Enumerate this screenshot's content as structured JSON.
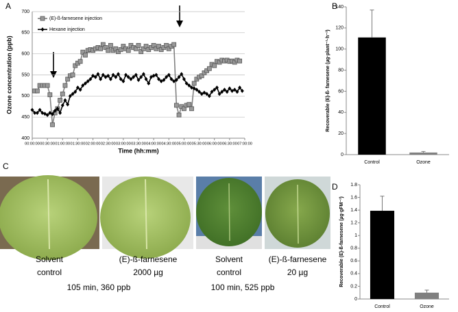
{
  "chart_data": [
    {
      "type": "line",
      "panel": "A",
      "xlabel": "Time (hh:mm)",
      "ylabel": "Ozone concentration (ppb)",
      "x": [
        0,
        5,
        10,
        15,
        20,
        25,
        30,
        35,
        40,
        45,
        50,
        55,
        60,
        65,
        70,
        75,
        80,
        85,
        90,
        95,
        100,
        105,
        110,
        115,
        120,
        125,
        130,
        135,
        140,
        145,
        150,
        155,
        160,
        165,
        170,
        175,
        180,
        185,
        190,
        195,
        200,
        205,
        210,
        215,
        220,
        225,
        230,
        235,
        240,
        245,
        250,
        255,
        260,
        265,
        270,
        275,
        280,
        285,
        290,
        295,
        300,
        305,
        310,
        315,
        320,
        325,
        330,
        335,
        340,
        345,
        350,
        355,
        360,
        365,
        370,
        375,
        380,
        385,
        390,
        395,
        400,
        405,
        410,
        415
      ],
      "series": [
        {
          "name": "(E)-ß-farnesene injection",
          "color": "#808080",
          "marker": "square",
          "values": [
            null,
            512,
            512,
            525,
            525,
            525,
            525,
            503,
            432,
            460,
            470,
            490,
            505,
            525,
            540,
            548,
            550,
            572,
            578,
            582,
            604,
            597,
            608,
            610,
            608,
            612,
            615,
            612,
            622,
            615,
            608,
            620,
            608,
            612,
            605,
            610,
            618,
            612,
            608,
            620,
            615,
            612,
            620,
            605,
            612,
            618,
            610,
            615,
            620,
            612,
            618,
            610,
            615,
            620,
            612,
            618,
            622,
            478,
            455,
            475,
            470,
            478,
            480,
            470,
            530,
            540,
            545,
            548,
            555,
            560,
            565,
            575,
            572,
            582,
            580,
            585,
            583,
            585,
            582,
            583,
            580,
            585,
            583,
            null
          ]
        },
        {
          "name": "Hexane injection",
          "color": "#000000",
          "marker": "diamond",
          "values": [
            467,
            460,
            460,
            467,
            460,
            458,
            455,
            460,
            457,
            465,
            470,
            460,
            478,
            490,
            480,
            500,
            505,
            510,
            520,
            515,
            525,
            530,
            535,
            540,
            548,
            545,
            552,
            540,
            550,
            545,
            548,
            540,
            550,
            545,
            552,
            540,
            535,
            550,
            545,
            540,
            545,
            550,
            538,
            545,
            552,
            540,
            530,
            545,
            548,
            550,
            540,
            535,
            538,
            545,
            550,
            540,
            535,
            538,
            545,
            552,
            540,
            530,
            525,
            520,
            518,
            515,
            510,
            505,
            508,
            505,
            500,
            510,
            515,
            520,
            505,
            510,
            515,
            510,
            518,
            512,
            515,
            510,
            520,
            512
          ]
        }
      ],
      "xlim": [
        0,
        420
      ],
      "xticks": [
        {
          "value": 0,
          "label": "00:00:00"
        },
        {
          "value": 30,
          "label": "00:30:00"
        },
        {
          "value": 60,
          "label": "01:00:00"
        },
        {
          "value": 90,
          "label": "01:30:00"
        },
        {
          "value": 120,
          "label": "02:00:00"
        },
        {
          "value": 150,
          "label": "02:30:00"
        },
        {
          "value": 180,
          "label": "03:00:00"
        },
        {
          "value": 210,
          "label": "03:30:00"
        },
        {
          "value": 240,
          "label": "04:00:00"
        },
        {
          "value": 270,
          "label": "04:30:00"
        },
        {
          "value": 300,
          "label": "05:00:00"
        },
        {
          "value": 330,
          "label": "05:30:00"
        },
        {
          "value": 360,
          "label": "06:00:00"
        },
        {
          "value": 390,
          "label": "06:30:00"
        },
        {
          "value": 420,
          "label": "07:00:00"
        }
      ],
      "ylim": [
        400,
        700
      ],
      "yticks": [
        400,
        450,
        500,
        550,
        600,
        650,
        700
      ],
      "grid": true,
      "legend": "upper left"
    },
    {
      "type": "bar",
      "panel": "B",
      "ylabel": "Recoverable (E)-ß- farnesene (µg·plant⁻¹·h⁻¹)",
      "categories": [
        "Control",
        "Ozone"
      ],
      "values": [
        111,
        2
      ],
      "errors": [
        26,
        1
      ],
      "colors": [
        "#000000",
        "#808080"
      ],
      "ylim": [
        0,
        140
      ],
      "yticks": [
        0,
        20,
        40,
        60,
        80,
        100,
        120,
        140
      ],
      "grid": false
    },
    {
      "type": "bar",
      "panel": "D",
      "ylabel": "Recoverable (E)-ß-farnesene (µg·gFM⁻¹)",
      "categories": [
        "Control",
        "Ozone"
      ],
      "values": [
        1.39,
        0.1
      ],
      "errors": [
        0.23,
        0.04
      ],
      "colors": [
        "#000000",
        "#808080"
      ],
      "ylim": [
        0,
        1.8
      ],
      "yticks": [
        0,
        0.2,
        0.4,
        0.6,
        0.8,
        1,
        1.2,
        1.4,
        1.6,
        1.8
      ],
      "grid": false
    }
  ],
  "photos": {
    "panel": "C",
    "captions": [
      [
        "Solvent",
        "control"
      ],
      [
        "(E)-ß-farnesene",
        "2000 µg"
      ],
      [
        "Solvent",
        "control"
      ],
      [
        "(E)-ß-farnesene",
        "20 µg"
      ]
    ],
    "conditions": [
      "105 min, 360 ppb",
      "100 min, 525 ppb"
    ]
  }
}
